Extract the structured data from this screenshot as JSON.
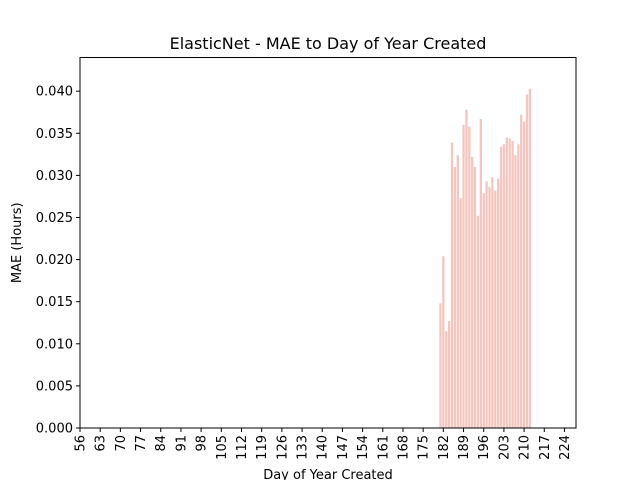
{
  "chart_data": {
    "type": "bar",
    "title": "ElasticNet - MAE to Day of Year Created",
    "xlabel": "Day of Year Created",
    "ylabel": "MAE (Hours)",
    "xlim": [
      56,
      228
    ],
    "ylim": [
      0,
      0.044
    ],
    "x_ticks": [
      "56",
      "63",
      "70",
      "77",
      "84",
      "91",
      "98",
      "105",
      "112",
      "119",
      "126",
      "133",
      "140",
      "147",
      "154",
      "161",
      "168",
      "175",
      "182",
      "189",
      "196",
      "203",
      "210",
      "217",
      "224"
    ],
    "y_ticks": [
      "0.000",
      "0.005",
      "0.010",
      "0.015",
      "0.020",
      "0.025",
      "0.030",
      "0.035",
      "0.040"
    ],
    "bar_color": "#f4c6c0",
    "grid": false,
    "x": [
      181,
      182,
      183,
      184,
      185,
      186,
      187,
      188,
      189,
      190,
      191,
      192,
      193,
      194,
      195,
      196,
      197,
      198,
      199,
      200,
      201,
      202,
      203,
      204,
      205,
      206,
      207,
      208,
      209,
      210,
      211,
      212
    ],
    "values": [
      0.0148,
      0.0204,
      0.0115,
      0.0127,
      0.0339,
      0.031,
      0.0324,
      0.0273,
      0.036,
      0.0378,
      0.0358,
      0.0322,
      0.031,
      0.0252,
      0.0367,
      0.0279,
      0.0293,
      0.0286,
      0.0298,
      0.0282,
      0.0296,
      0.0334,
      0.0337,
      0.0345,
      0.0344,
      0.0341,
      0.0324,
      0.0337,
      0.0372,
      0.0364,
      0.0396,
      0.0403
    ]
  }
}
